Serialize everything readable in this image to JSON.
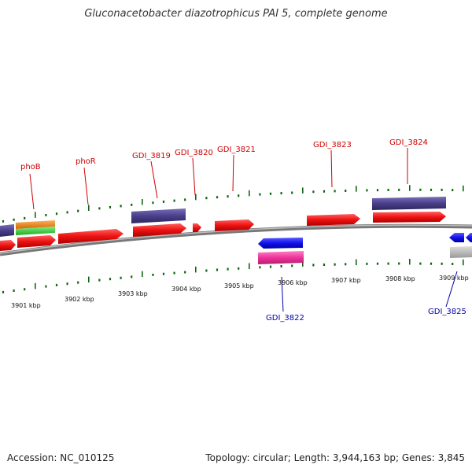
{
  "title": "Gluconacetobacter diazotrophicus PAI 5, complete genome",
  "footer": {
    "accession": "Accession: NC_010125",
    "stats": "Topology: circular; Length: 3,944,163 bp; Genes: 3,845"
  },
  "kbp_labels": [
    "3901 kbp",
    "3902 kbp",
    "3903 kbp",
    "3904 kbp",
    "3905 kbp",
    "3906 kbp",
    "3907 kbp",
    "3908 kbp",
    "3909 kbp"
  ],
  "gene_labels_top": [
    "phoB",
    "phoR",
    "GDI_3819",
    "GDI_3820",
    "GDI_3821",
    "GDI_3823",
    "GDI_3824"
  ],
  "gene_labels_bottom": [
    "GDI_3822",
    "GDI_3825"
  ],
  "colors": {
    "forward_gene": "#ee1111",
    "reverse_gene": "#1111ee",
    "cog_purple": "#4a3f8c",
    "cog_orange": "#f08a1a",
    "cog_green": "#33cc33",
    "cog_pink": "#ee3399",
    "cog_gray": "#bbbbbb",
    "backbone": "#888888",
    "tick": "#116611",
    "top_label": "#cc0000",
    "bottom_label": "#0000aa"
  }
}
